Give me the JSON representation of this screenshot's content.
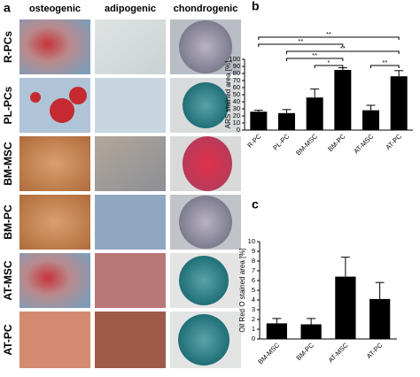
{
  "micrographs": {
    "label": "a",
    "columns": [
      "osteogenic",
      "adipogenic",
      "chondrogenic"
    ],
    "rows": [
      "R-PCs",
      "PL-PCs",
      "BM-MSC",
      "BM-PC",
      "AT-MSC",
      "AT-PC"
    ]
  },
  "chart_data": [
    {
      "type": "bar",
      "label": "b",
      "y_label": "ARS stained area [%]",
      "categories": [
        "R-PC",
        "PL-PC",
        "BM-MSC",
        "BM-PC",
        "AT-MSC",
        "AT-PC"
      ],
      "values": [
        26,
        24,
        46,
        85,
        28,
        76
      ],
      "errors": [
        2,
        5,
        12,
        3,
        7,
        8
      ],
      "color": "#000000",
      "ylim": [
        0,
        100
      ],
      "yticks": [
        0,
        10,
        20,
        30,
        40,
        50,
        60,
        70,
        80,
        90,
        100
      ],
      "significance": [
        {
          "between": [
            "BM-MSC",
            "BM-PC"
          ],
          "label": "*"
        },
        {
          "between": [
            "AT-MSC",
            "AT-PC"
          ],
          "label": "**"
        },
        {
          "between": [
            "PL-PC",
            "BM-PC"
          ],
          "label": "**"
        },
        {
          "between": [
            "PL-PC",
            "AT-PC"
          ],
          "label": "**"
        },
        {
          "between": [
            "R-PC",
            "BM-PC"
          ],
          "label": "**"
        },
        {
          "between": [
            "R-PC",
            "AT-PC"
          ],
          "label": "**"
        }
      ]
    },
    {
      "type": "bar",
      "label": "c",
      "y_label": "Oil Red O stained area [%]",
      "categories": [
        "BM-MSC",
        "BM-PC",
        "AT-MSC",
        "AT-PC"
      ],
      "values": [
        1.6,
        1.5,
        6.4,
        4.1
      ],
      "errors": [
        0.5,
        0.6,
        2.0,
        1.7
      ],
      "color": "#000000",
      "ylim": [
        0,
        10
      ],
      "yticks": [
        0,
        1,
        2,
        3,
        4,
        5,
        6,
        7,
        8,
        9,
        10
      ]
    }
  ]
}
